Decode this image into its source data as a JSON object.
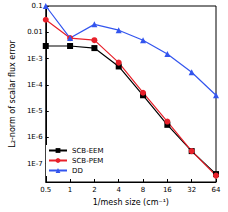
{
  "chart_data": {
    "type": "line",
    "x_label": "1/mesh size (cm⁻¹)",
    "y_label": "L₂-norm of scalar flux error",
    "x": [
      0.5,
      1,
      2,
      4,
      8,
      16,
      32,
      64
    ],
    "series": [
      {
        "name": "SCB-EEM",
        "color": "#000000",
        "marker": "square",
        "values": [
          0.003,
          0.003,
          0.0025,
          0.0005,
          4e-05,
          3e-06,
          3e-07,
          4e-08
        ]
      },
      {
        "name": "SCB-PEM",
        "color": "#e8202a",
        "marker": "circle",
        "values": [
          0.03,
          0.006,
          0.005,
          0.0007,
          5e-05,
          4e-06,
          3e-07,
          3.5e-08
        ]
      },
      {
        "name": "DD",
        "color": "#3355ee",
        "marker": "triangle",
        "values": [
          0.1,
          0.006,
          0.02,
          0.012,
          0.005,
          0.0015,
          0.0003,
          4e-05
        ]
      }
    ],
    "log": true,
    "xlim": [
      0.5,
      64
    ],
    "xticks": [
      0.5,
      1,
      2,
      4,
      8,
      16,
      32,
      64
    ],
    "ylim": [
      2e-08,
      0.1
    ],
    "yticks": [
      0.1,
      0.01,
      {
        "value": 0.001,
        "label": "1E-3"
      },
      {
        "value": 0.0001,
        "label": "1E-4"
      },
      {
        "value": 1e-05,
        "label": "1E-5"
      },
      {
        "value": 1e-06,
        "label": "1E-6"
      },
      {
        "value": 1e-07,
        "label": "1E-7"
      }
    ],
    "grid": false,
    "legend": "bottom-left"
  }
}
